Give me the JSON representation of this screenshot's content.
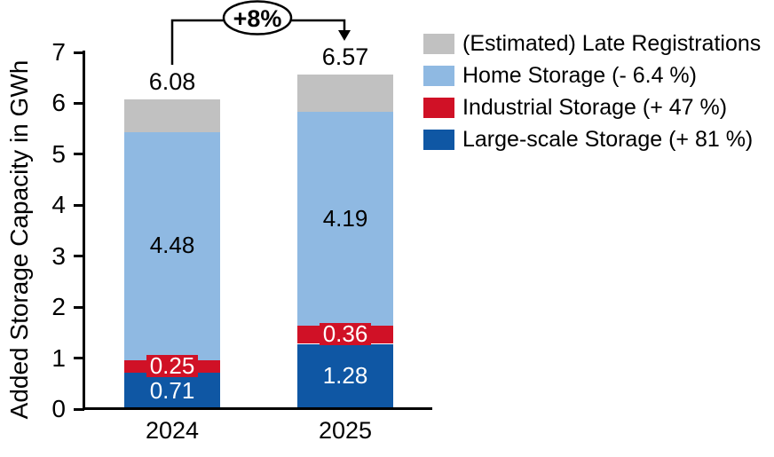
{
  "chart_data": {
    "type": "bar",
    "stacked": true,
    "ylabel": "Added Storage Capacity in GWh",
    "ylim": [
      0,
      7
    ],
    "yticks": [
      0,
      1,
      2,
      3,
      4,
      5,
      6,
      7
    ],
    "categories": [
      "2024",
      "2025"
    ],
    "series": [
      {
        "name": "Large-scale Storage (+ 81 %)",
        "color": "#0f57a4",
        "text_color": "#ffffff",
        "values": [
          0.71,
          1.28
        ],
        "labels": [
          "0.71",
          "1.28"
        ]
      },
      {
        "name": "Industrial Storage (+ 47 %)",
        "color": "#d01126",
        "text_color": "#ffffff",
        "values": [
          0.25,
          0.36
        ],
        "labels": [
          "0.25",
          "0.36"
        ]
      },
      {
        "name": "Home Storage (- 6.4 %)",
        "color": "#8fb9e2",
        "text_color": "#000000",
        "values": [
          4.48,
          4.19
        ],
        "labels": [
          "4.48",
          "4.19"
        ]
      },
      {
        "name": "(Estimated) Late Registrations",
        "color": "#c1c1c1",
        "text_color": null,
        "values": [
          0.64,
          0.74
        ],
        "labels": [
          null,
          null
        ]
      }
    ],
    "totals": [
      "6.08",
      "6.57"
    ],
    "annotation": {
      "label": "+8%"
    },
    "legend_position": "top-right",
    "grid": false
  }
}
